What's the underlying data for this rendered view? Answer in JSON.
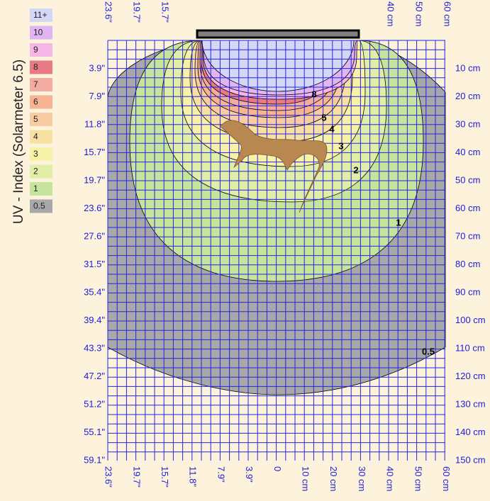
{
  "legend": {
    "title": "UV - Index (Solarmeter 6.5)",
    "items": [
      {
        "label": "11+",
        "color": "#d4d8f6"
      },
      {
        "label": "10",
        "color": "#dfb6f2"
      },
      {
        "label": "9",
        "color": "#f6b6e6"
      },
      {
        "label": "8",
        "color": "#e87a86"
      },
      {
        "label": "7",
        "color": "#f3aca2"
      },
      {
        "label": "6",
        "color": "#f6b494"
      },
      {
        "label": "5",
        "color": "#f8cca2"
      },
      {
        "label": "4",
        "color": "#f8e0a2"
      },
      {
        "label": "3",
        "color": "#f8f2a8"
      },
      {
        "label": "2",
        "color": "#e0eea8"
      },
      {
        "label": "1",
        "color": "#c6e49c"
      },
      {
        "label": "0.5",
        "color": "#a8a8a8"
      }
    ]
  },
  "left_labels": [
    "3.9\"",
    "7.9\"",
    "11.8\"",
    "15.7\"",
    "19.7\"",
    "23.6\"",
    "27.6\"",
    "31.5\"",
    "35.4\"",
    "39.4\"",
    "43.3\"",
    "47.2\"",
    "51.2\"",
    "55.1\"",
    "59.1\""
  ],
  "right_labels": [
    "10 cm",
    "20 cm",
    "30 cm",
    "40 cm",
    "50 cm",
    "60 cm",
    "70 cm",
    "80 cm",
    "90 cm",
    "100 cm",
    "110 cm",
    "120 cm",
    "130 cm",
    "140 cm",
    "150 cm"
  ],
  "bottom_labels": [
    "23.6\"",
    "19.7\"",
    "15.7\"",
    "11.8\"",
    "7.9\"",
    "3.9\"",
    "0",
    "10 cm",
    "20 cm",
    "30 cm",
    "40 cm",
    "50 cm",
    "60 cm"
  ],
  "top_labels": [
    "23.6\"",
    "19.7\"",
    "15.7\"",
    "40 cm",
    "50 cm",
    "60 cm"
  ],
  "contour_labels": [
    "8",
    "5",
    "4",
    "3",
    "2",
    "1",
    "0.5"
  ]
}
